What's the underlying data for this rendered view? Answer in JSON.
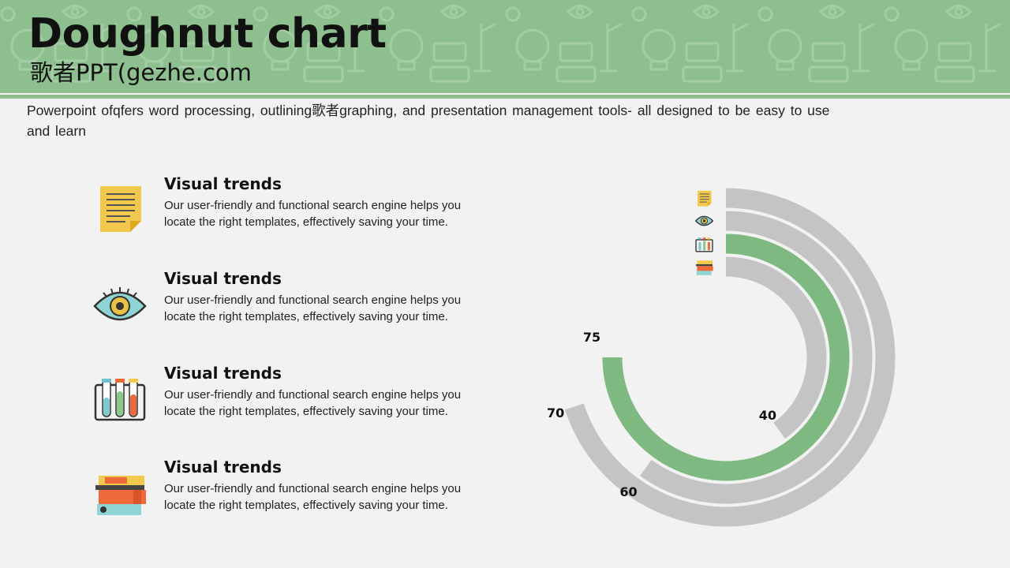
{
  "header": {
    "title": "Doughnut chart",
    "subtitle": "歌者PPT(gezhe.com"
  },
  "intro": "Powerpoint ofqfers word processing, outlining歌者graphing, and presentation management tools- all designed to be easy to use and learn",
  "items": [
    {
      "icon": "notepad-icon",
      "title": "Visual trends",
      "text": "Our user-friendly and functional search engine helps you locate the right templates, effectively saving your time."
    },
    {
      "icon": "eye-icon",
      "title": "Visual trends",
      "text": "Our user-friendly and functional search engine helps you locate the right templates, effectively saving your time."
    },
    {
      "icon": "test-tubes-icon",
      "title": "Visual trends",
      "text": "Our user-friendly and functional search engine helps you locate the right templates, effectively saving your time."
    },
    {
      "icon": "books-icon",
      "title": "Visual trends",
      "text": "Our user-friendly and functional search engine helps you locate the right templates, effectively saving your time."
    }
  ],
  "colors": {
    "accent": "#7fb982",
    "ring": "#c4c4c4",
    "banner": "#8ec08f"
  },
  "chart_data": {
    "type": "doughnut",
    "max": 100,
    "rings": [
      {
        "icon": "notepad-icon",
        "value": 70,
        "label": "70",
        "highlight": false
      },
      {
        "icon": "eye-icon",
        "value": 60,
        "label": "60",
        "highlight": false
      },
      {
        "icon": "test-tubes-icon",
        "value": 75,
        "label": "75",
        "highlight": true
      },
      {
        "icon": "books-icon",
        "value": 40,
        "label": "40",
        "highlight": false
      }
    ]
  }
}
